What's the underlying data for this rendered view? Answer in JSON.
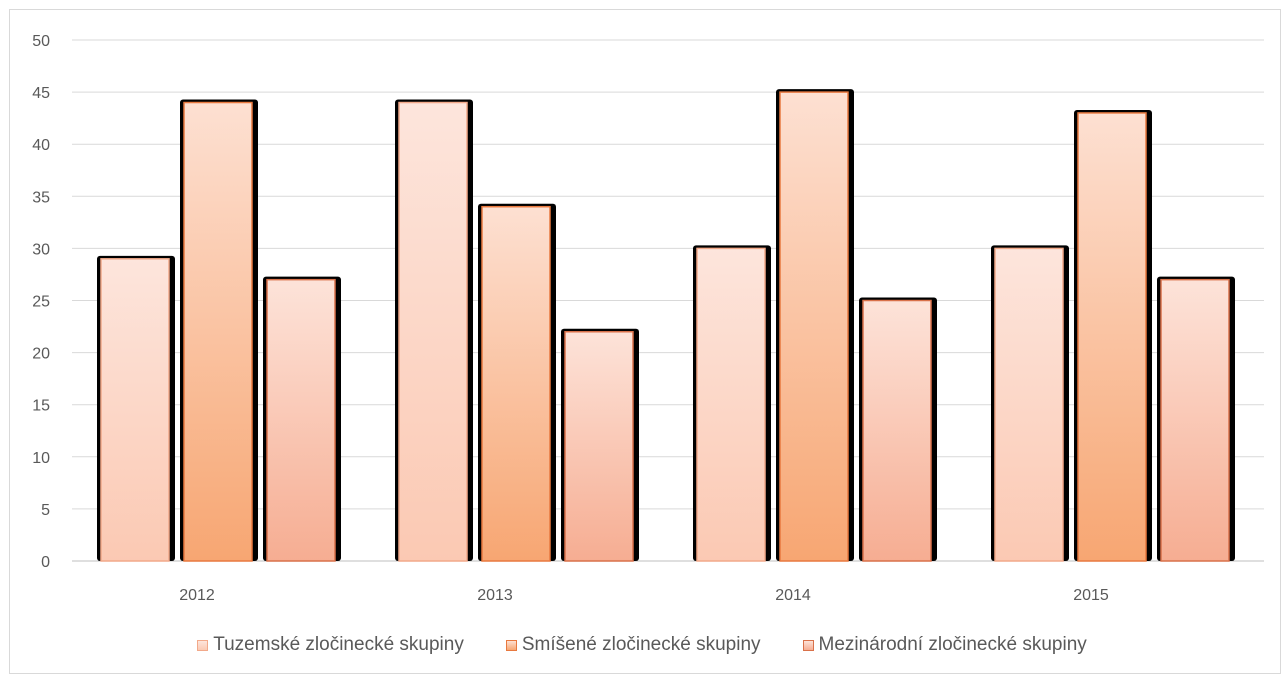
{
  "chart_data": {
    "type": "bar",
    "title": "",
    "xlabel": "",
    "ylabel": "",
    "categories": [
      "2012",
      "2013",
      "2014",
      "2015"
    ],
    "series": [
      {
        "name": "Tuzemské zločinecké skupiny",
        "values": [
          29,
          44,
          30,
          30
        ],
        "color_top": "#fde5dc",
        "color_bottom": "#fbc9b3",
        "border": "#f2a98a"
      },
      {
        "name": "Smíšené zločinecké skupiny",
        "values": [
          44,
          34,
          45,
          43
        ],
        "color_top": "#fde0d2",
        "color_bottom": "#f7a672",
        "border": "#e8793f"
      },
      {
        "name": "Mezinárodní zločinecké skupiny",
        "values": [
          27,
          22,
          25,
          27
        ],
        "color_top": "#fde3d9",
        "color_bottom": "#f6ad92",
        "border": "#d9714a"
      }
    ],
    "ylim": [
      0,
      50
    ],
    "yticks": [
      0,
      5,
      10,
      15,
      20,
      25,
      30,
      35,
      40,
      45,
      50
    ],
    "grid": true,
    "legend_position": "bottom"
  }
}
